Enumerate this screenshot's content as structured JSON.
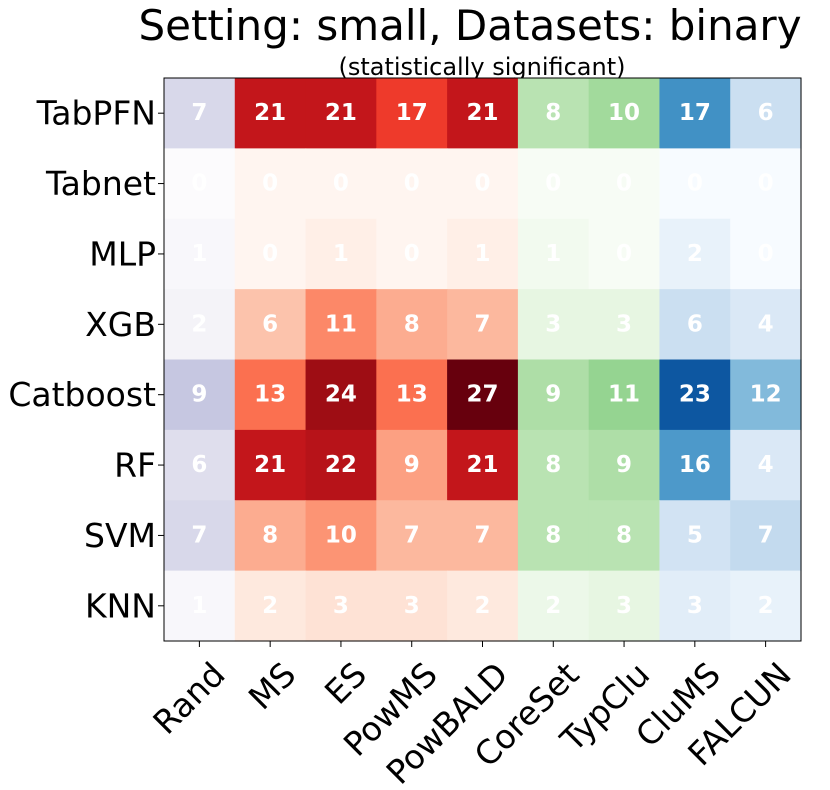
{
  "chart_data": {
    "type": "heatmap",
    "title": "Setting: small, Datasets: binary",
    "subtitle": "(statistically significant)",
    "rows": [
      "TabPFN",
      "Tabnet",
      "MLP",
      "XGB",
      "Catboost",
      "RF",
      "SVM",
      "KNN"
    ],
    "columns": [
      "Rand",
      "MS",
      "ES",
      "PowMS",
      "PowBALD",
      "CoreSet",
      "TypClu",
      "CluMS",
      "FALCUN"
    ],
    "column_colormaps": [
      "Purples",
      "Reds",
      "Reds",
      "Reds",
      "Reds",
      "Greens",
      "Greens",
      "Blues",
      "Blues"
    ],
    "value_range": [
      0,
      27
    ],
    "values": [
      [
        7,
        21,
        21,
        17,
        21,
        8,
        10,
        17,
        6
      ],
      [
        0,
        0,
        0,
        0,
        0,
        0,
        0,
        0,
        0
      ],
      [
        1,
        0,
        1,
        0,
        1,
        1,
        0,
        2,
        0
      ],
      [
        2,
        6,
        11,
        8,
        7,
        3,
        3,
        6,
        4
      ],
      [
        9,
        13,
        24,
        13,
        27,
        9,
        11,
        23,
        12
      ],
      [
        6,
        21,
        22,
        9,
        21,
        8,
        9,
        16,
        4
      ],
      [
        7,
        8,
        10,
        7,
        7,
        8,
        8,
        5,
        7
      ],
      [
        1,
        2,
        3,
        3,
        2,
        2,
        3,
        3,
        2
      ]
    ]
  }
}
